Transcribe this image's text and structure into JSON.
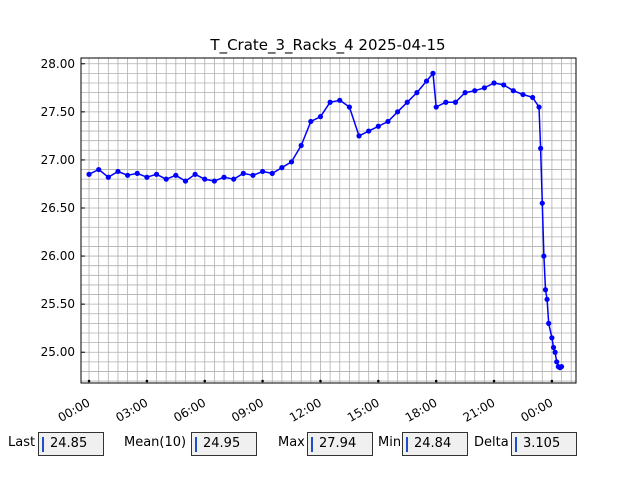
{
  "chart_data": {
    "type": "line",
    "title": "T_Crate_3_Racks_4 2025-04-15",
    "xlabel": "",
    "ylabel": "",
    "x_unit": "hours since 00:00 of 2025-04-15",
    "x_ticks": [
      "00:00",
      "03:00",
      "06:00",
      "09:00",
      "12:00",
      "15:00",
      "18:00",
      "21:00",
      "00:00"
    ],
    "y_ticks": [
      "25.00",
      "25.50",
      "26.00",
      "26.50",
      "27.00",
      "27.50",
      "28.00"
    ],
    "xlim": [
      "2025-04-14 23:35",
      "2025-04-16 01:15"
    ],
    "ylim": [
      24.68,
      28.06
    ],
    "grid": true,
    "series": [
      {
        "color": "#0000ff",
        "x": [
          "2025-04-15 00:00",
          "2025-04-15 00:30",
          "2025-04-15 01:00",
          "2025-04-15 01:30",
          "2025-04-15 02:00",
          "2025-04-15 02:30",
          "2025-04-15 03:00",
          "2025-04-15 03:30",
          "2025-04-15 04:00",
          "2025-04-15 04:30",
          "2025-04-15 05:00",
          "2025-04-15 05:30",
          "2025-04-15 06:00",
          "2025-04-15 06:30",
          "2025-04-15 07:00",
          "2025-04-15 07:30",
          "2025-04-15 08:00",
          "2025-04-15 08:30",
          "2025-04-15 09:00",
          "2025-04-15 09:30",
          "2025-04-15 10:00",
          "2025-04-15 10:30",
          "2025-04-15 11:00",
          "2025-04-15 11:30",
          "2025-04-15 12:00",
          "2025-04-15 12:30",
          "2025-04-15 13:00",
          "2025-04-15 13:30",
          "2025-04-15 14:00",
          "2025-04-15 14:30",
          "2025-04-15 15:00",
          "2025-04-15 15:30",
          "2025-04-15 16:00",
          "2025-04-15 16:30",
          "2025-04-15 17:00",
          "2025-04-15 17:30",
          "2025-04-15 17:50",
          "2025-04-15 18:00",
          "2025-04-15 18:30",
          "2025-04-15 19:00",
          "2025-04-15 19:30",
          "2025-04-15 20:00",
          "2025-04-15 20:30",
          "2025-04-15 21:00",
          "2025-04-15 21:30",
          "2025-04-15 22:00",
          "2025-04-15 22:30",
          "2025-04-15 23:00",
          "2025-04-15 23:20",
          "2025-04-15 23:25",
          "2025-04-15 23:30",
          "2025-04-15 23:35",
          "2025-04-15 23:40",
          "2025-04-15 23:45",
          "2025-04-15 23:50",
          "2025-04-16 00:00",
          "2025-04-16 00:05",
          "2025-04-16 00:10",
          "2025-04-16 00:15",
          "2025-04-16 00:20",
          "2025-04-16 00:25",
          "2025-04-16 00:30"
        ],
        "values": [
          26.85,
          26.9,
          26.82,
          26.88,
          26.84,
          26.86,
          26.82,
          26.85,
          26.8,
          26.84,
          26.78,
          26.85,
          26.8,
          26.78,
          26.82,
          26.8,
          26.86,
          26.84,
          26.88,
          26.86,
          26.92,
          26.98,
          27.15,
          27.4,
          27.45,
          27.6,
          27.62,
          27.55,
          27.25,
          27.3,
          27.35,
          27.4,
          27.5,
          27.6,
          27.7,
          27.82,
          27.9,
          27.55,
          27.6,
          27.6,
          27.7,
          27.72,
          27.75,
          27.8,
          27.78,
          27.72,
          27.68,
          27.65,
          27.55,
          27.12,
          26.55,
          26.0,
          25.65,
          25.55,
          25.3,
          25.15,
          25.05,
          25.0,
          24.9,
          24.85,
          24.84,
          24.85
        ]
      }
    ]
  },
  "stats": {
    "last_label": "Last",
    "last_value": "24.85",
    "mean_label": "Mean(10)",
    "mean_value": "24.95",
    "max_label": "Max",
    "max_value": "27.94",
    "min_label": "Min",
    "min_value": "24.84",
    "delta_label": "Delta",
    "delta_value": "3.105"
  }
}
